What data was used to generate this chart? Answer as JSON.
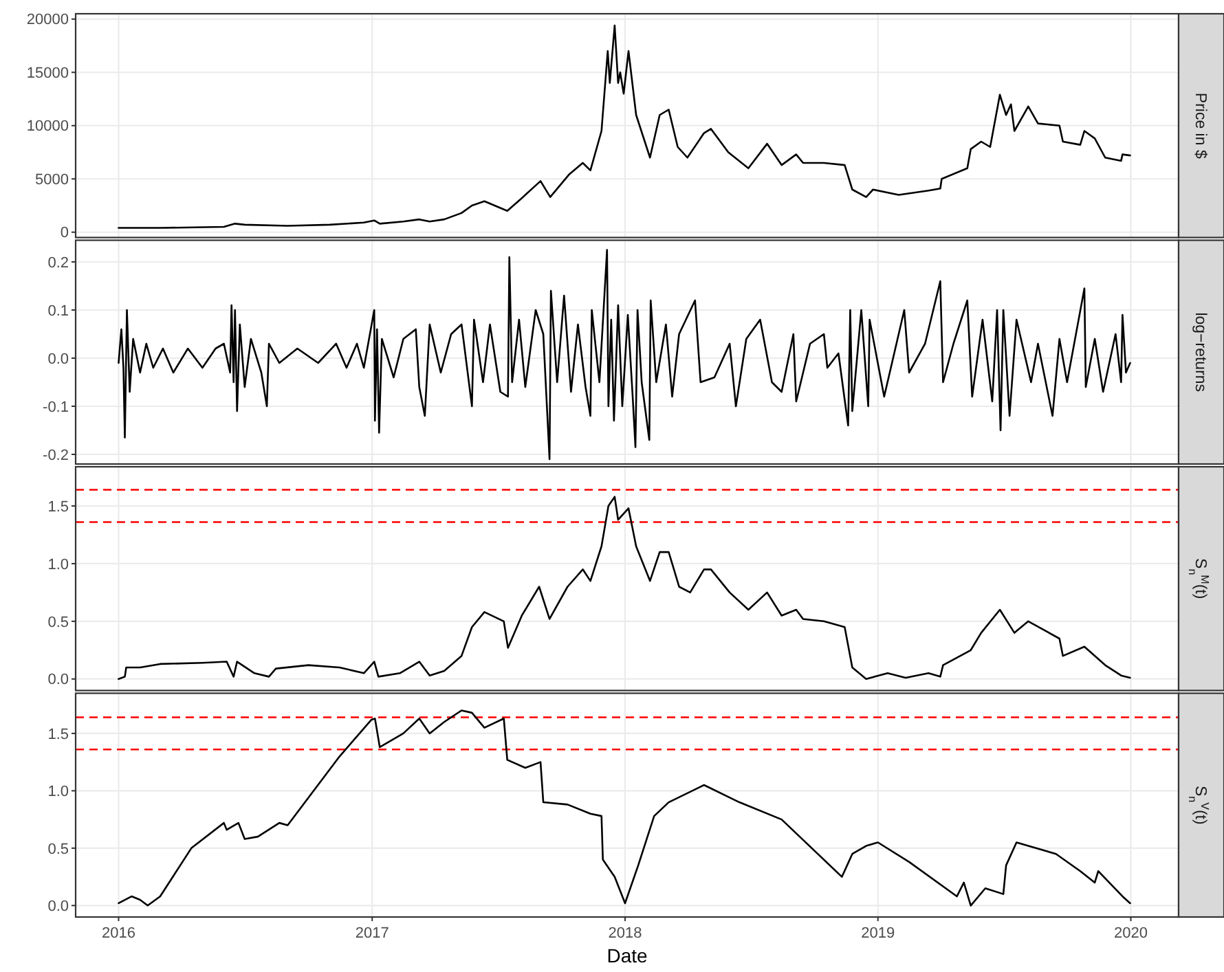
{
  "chart_data": [
    {
      "type": "line",
      "ylabel": "Price in $",
      "tick_labels": "y",
      "grid": true,
      "color": "#000000",
      "xlim": [
        "2015-10-31",
        "2020-03-10"
      ],
      "xticks": [
        "2016",
        "2017",
        "2018",
        "2019",
        "2020"
      ],
      "ylim": [
        -500,
        20500
      ],
      "yticks": [
        0,
        5000,
        10000,
        15000,
        20000
      ],
      "x": [
        "2016-01-01",
        "2016-03-01",
        "2016-06-01",
        "2016-06-17",
        "2016-07-01",
        "2016-09-01",
        "2016-11-01",
        "2016-12-20",
        "2017-01-04",
        "2017-01-12",
        "2017-02-15",
        "2017-03-10",
        "2017-03-25",
        "2017-04-15",
        "2017-05-10",
        "2017-05-25",
        "2017-06-12",
        "2017-07-15",
        "2017-08-05",
        "2017-09-01",
        "2017-09-15",
        "2017-10-12",
        "2017-11-01",
        "2017-11-12",
        "2017-11-28",
        "2017-12-07",
        "2017-12-10",
        "2017-12-17",
        "2017-12-22",
        "2017-12-25",
        "2017-12-30",
        "2018-01-06",
        "2018-01-17",
        "2018-02-06",
        "2018-02-20",
        "2018-03-05",
        "2018-03-18",
        "2018-04-01",
        "2018-04-25",
        "2018-05-05",
        "2018-05-30",
        "2018-06-28",
        "2018-07-25",
        "2018-08-15",
        "2018-09-05",
        "2018-09-15",
        "2018-10-15",
        "2018-11-14",
        "2018-11-25",
        "2018-12-15",
        "2018-12-25",
        "2019-01-31",
        "2019-03-15",
        "2019-04-01",
        "2019-04-03",
        "2019-05-10",
        "2019-05-15",
        "2019-05-30",
        "2019-06-12",
        "2019-06-26",
        "2019-07-05",
        "2019-07-12",
        "2019-07-17",
        "2019-08-06",
        "2019-08-20",
        "2019-09-20",
        "2019-09-25",
        "2019-10-20",
        "2019-10-26",
        "2019-11-10",
        "2019-11-25",
        "2019-12-18",
        "2019-12-20",
        "2019-12-31"
      ],
      "values": [
        400,
        400,
        500,
        800,
        700,
        600,
        700,
        900,
        1100,
        800,
        1000,
        1200,
        1000,
        1200,
        1800,
        2500,
        2900,
        2000,
        3200,
        4800,
        3300,
        5400,
        6500,
        5800,
        9500,
        17000,
        14000,
        19400,
        14000,
        15000,
        13000,
        17000,
        11000,
        7000,
        11000,
        11500,
        8000,
        7000,
        9300,
        9700,
        7500,
        6000,
        8300,
        6300,
        7300,
        6500,
        6500,
        6300,
        4000,
        3300,
        4000,
        3500,
        3900,
        4100,
        5000,
        6000,
        7800,
        8500,
        8000,
        12900,
        11000,
        12000,
        9500,
        11800,
        10200,
        10000,
        8500,
        8200,
        9500,
        8800,
        7000,
        6700,
        7300,
        7200
      ]
    },
    {
      "type": "line",
      "ylabel": "log−returns",
      "tick_labels": "y",
      "grid": true,
      "color": "#000000",
      "xlim": [
        "2015-10-31",
        "2020-03-10"
      ],
      "xticks": [
        "2016",
        "2017",
        "2018",
        "2019",
        "2020"
      ],
      "ylim": [
        -0.22,
        0.245
      ],
      "yticks": [
        {
          "value": -0.2,
          "label": "-0.2"
        },
        {
          "value": -0.1,
          "label": "-0.1"
        },
        {
          "value": 0,
          "label": "0.0"
        },
        0.1,
        0.2
      ],
      "x": [
        "2016-01-01",
        "2016-01-05",
        "2016-01-08",
        "2016-01-10",
        "2016-01-13",
        "2016-01-17",
        "2016-01-22",
        "2016-02-01",
        "2016-02-10",
        "2016-02-20",
        "2016-03-05",
        "2016-03-20",
        "2016-04-10",
        "2016-05-01",
        "2016-05-20",
        "2016-06-01",
        "2016-06-10",
        "2016-06-12",
        "2016-06-15",
        "2016-06-17",
        "2016-06-20",
        "2016-06-24",
        "2016-07-01",
        "2016-07-10",
        "2016-07-25",
        "2016-08-02",
        "2016-08-05",
        "2016-08-20",
        "2016-09-15",
        "2016-10-15",
        "2016-11-10",
        "2016-11-25",
        "2016-12-10",
        "2016-12-20",
        "2017-01-04",
        "2017-01-05",
        "2017-01-08",
        "2017-01-11",
        "2017-01-15",
        "2017-02-01",
        "2017-02-15",
        "2017-03-05",
        "2017-03-10",
        "2017-03-18",
        "2017-03-25",
        "2017-04-10",
        "2017-04-25",
        "2017-05-10",
        "2017-05-25",
        "2017-05-28",
        "2017-06-10",
        "2017-06-20",
        "2017-07-05",
        "2017-07-16",
        "2017-07-18",
        "2017-07-22",
        "2017-08-01",
        "2017-08-10",
        "2017-08-25",
        "2017-09-05",
        "2017-09-14",
        "2017-09-16",
        "2017-09-25",
        "2017-10-05",
        "2017-10-15",
        "2017-10-25",
        "2017-11-05",
        "2017-11-12",
        "2017-11-14",
        "2017-11-25",
        "2017-12-01",
        "2017-12-06",
        "2017-12-08",
        "2017-12-12",
        "2017-12-16",
        "2017-12-22",
        "2017-12-28",
        "2018-01-05",
        "2018-01-12",
        "2018-01-16",
        "2018-01-19",
        "2018-01-25",
        "2018-02-05",
        "2018-02-07",
        "2018-02-15",
        "2018-03-01",
        "2018-03-10",
        "2018-03-20",
        "2018-04-12",
        "2018-04-20",
        "2018-05-10",
        "2018-06-01",
        "2018-06-10",
        "2018-06-25",
        "2018-07-15",
        "2018-08-01",
        "2018-08-15",
        "2018-09-01",
        "2018-09-05",
        "2018-09-25",
        "2018-10-15",
        "2018-10-20",
        "2018-11-05",
        "2018-11-19",
        "2018-11-22",
        "2018-11-25",
        "2018-12-08",
        "2018-12-18",
        "2018-12-20",
        "2019-01-10",
        "2019-02-08",
        "2019-02-15",
        "2019-03-10",
        "2019-04-01",
        "2019-04-05",
        "2019-04-20",
        "2019-05-10",
        "2019-05-17",
        "2019-06-01",
        "2019-06-15",
        "2019-06-22",
        "2019-06-27",
        "2019-07-01",
        "2019-07-10",
        "2019-07-20",
        "2019-08-10",
        "2019-08-20",
        "2019-09-10",
        "2019-09-20",
        "2019-10-01",
        "2019-10-26",
        "2019-10-28",
        "2019-11-10",
        "2019-11-22",
        "2019-12-10",
        "2019-12-18",
        "2019-12-20",
        "2019-12-25",
        "2019-12-31"
      ],
      "values": [
        -0.01,
        0.06,
        -0.02,
        -0.165,
        0.1,
        -0.07,
        0.04,
        -0.03,
        0.03,
        -0.02,
        0.02,
        -0.03,
        0.02,
        -0.02,
        0.02,
        0.03,
        -0.03,
        0.11,
        -0.05,
        0.1,
        -0.11,
        0.07,
        -0.06,
        0.04,
        -0.03,
        -0.1,
        0.03,
        -0.01,
        0.02,
        -0.01,
        0.03,
        -0.02,
        0.03,
        -0.02,
        0.1,
        -0.13,
        0.06,
        -0.155,
        0.04,
        -0.04,
        0.04,
        0.06,
        -0.06,
        -0.12,
        0.07,
        -0.03,
        0.05,
        0.07,
        -0.1,
        0.08,
        -0.05,
        0.07,
        -0.07,
        -0.08,
        0.21,
        -0.05,
        0.08,
        -0.06,
        0.1,
        0.05,
        -0.21,
        0.14,
        -0.05,
        0.13,
        -0.07,
        0.07,
        -0.06,
        -0.12,
        0.1,
        -0.05,
        0.1,
        0.225,
        -0.1,
        0.08,
        -0.13,
        0.11,
        -0.1,
        0.09,
        -0.08,
        -0.185,
        0.1,
        -0.05,
        -0.17,
        0.12,
        -0.05,
        0.07,
        -0.08,
        0.05,
        0.12,
        -0.05,
        -0.04,
        0.03,
        -0.1,
        0.04,
        0.08,
        -0.05,
        -0.07,
        0.05,
        -0.09,
        0.03,
        0.05,
        -0.02,
        0.01,
        -0.14,
        0.1,
        -0.11,
        0.1,
        -0.1,
        0.08,
        -0.08,
        0.1,
        -0.03,
        0.03,
        0.16,
        -0.05,
        0.03,
        0.12,
        -0.08,
        0.08,
        -0.09,
        0.1,
        -0.15,
        0.1,
        -0.12,
        0.08,
        -0.05,
        0.03,
        -0.12,
        0.04,
        -0.05,
        0.145,
        -0.06,
        0.04,
        -0.07,
        0.05,
        -0.05,
        0.09,
        -0.03,
        -0.01
      ]
    },
    {
      "type": "line",
      "ylabel": "S$_{n}$$^{M}$(t)",
      "tick_labels": "y",
      "grid": true,
      "color": "#000000",
      "xlim": [
        "2015-10-31",
        "2020-03-10"
      ],
      "xticks": [
        "2016",
        "2017",
        "2018",
        "2019",
        "2020"
      ],
      "ylim": [
        -0.1,
        1.84
      ],
      "yticks": [
        {
          "value": 0,
          "label": "0.0"
        },
        {
          "value": 0.5,
          "label": "0.5"
        },
        {
          "value": 1,
          "label": "1.0"
        },
        {
          "value": 1.5,
          "label": "1.5"
        }
      ],
      "ref_lines": [
        {
          "axis": "y",
          "value": 1.64,
          "color": "#ff0000",
          "line_style": "dashed"
        },
        {
          "axis": "y",
          "value": 1.36,
          "color": "#ff0000",
          "line_style": "dashed"
        }
      ],
      "x": [
        "2016-01-01",
        "2016-01-10",
        "2016-01-12",
        "2016-02-01",
        "2016-03-01",
        "2016-05-01",
        "2016-06-05",
        "2016-06-15",
        "2016-06-20",
        "2016-07-15",
        "2016-08-05",
        "2016-08-15",
        "2016-10-01",
        "2016-11-15",
        "2016-12-20",
        "2017-01-04",
        "2017-01-10",
        "2017-02-10",
        "2017-03-10",
        "2017-03-25",
        "2017-04-15",
        "2017-05-10",
        "2017-05-25",
        "2017-06-12",
        "2017-07-10",
        "2017-07-16",
        "2017-08-05",
        "2017-08-30",
        "2017-09-14",
        "2017-10-10",
        "2017-11-01",
        "2017-11-12",
        "2017-11-28",
        "2017-12-08",
        "2017-12-17",
        "2017-12-22",
        "2018-01-06",
        "2018-01-17",
        "2018-02-06",
        "2018-02-20",
        "2018-03-05",
        "2018-03-20",
        "2018-04-05",
        "2018-04-25",
        "2018-05-05",
        "2018-06-01",
        "2018-06-28",
        "2018-07-25",
        "2018-08-15",
        "2018-09-05",
        "2018-09-15",
        "2018-10-15",
        "2018-11-14",
        "2018-11-25",
        "2018-12-15",
        "2019-01-15",
        "2019-02-10",
        "2019-03-15",
        "2019-04-01",
        "2019-04-05",
        "2019-05-15",
        "2019-05-30",
        "2019-06-26",
        "2019-07-17",
        "2019-08-06",
        "2019-09-20",
        "2019-09-25",
        "2019-10-26",
        "2019-11-25",
        "2019-12-18",
        "2019-12-31"
      ],
      "values": [
        0.0,
        0.02,
        0.1,
        0.1,
        0.13,
        0.14,
        0.15,
        0.02,
        0.15,
        0.05,
        0.02,
        0.09,
        0.12,
        0.1,
        0.05,
        0.15,
        0.02,
        0.05,
        0.15,
        0.03,
        0.07,
        0.2,
        0.45,
        0.58,
        0.5,
        0.27,
        0.55,
        0.8,
        0.52,
        0.8,
        0.95,
        0.85,
        1.15,
        1.5,
        1.58,
        1.38,
        1.48,
        1.15,
        0.85,
        1.1,
        1.1,
        0.8,
        0.75,
        0.95,
        0.95,
        0.75,
        0.6,
        0.75,
        0.55,
        0.6,
        0.52,
        0.5,
        0.45,
        0.1,
        0.0,
        0.05,
        0.01,
        0.05,
        0.02,
        0.12,
        0.25,
        0.4,
        0.6,
        0.4,
        0.5,
        0.35,
        0.2,
        0.28,
        0.12,
        0.03,
        0.01
      ]
    },
    {
      "type": "line",
      "ylabel": "S$_{n}$$^{V}$(t)",
      "xlabel": "Date",
      "grid": true,
      "color": "#000000",
      "xlim": [
        "2015-10-31",
        "2020-03-10"
      ],
      "xticks": [
        "2016",
        "2017",
        "2018",
        "2019",
        "2020"
      ],
      "ylim": [
        -0.1,
        1.85
      ],
      "yticks": [
        {
          "value": 0,
          "label": "0.0"
        },
        {
          "value": 0.5,
          "label": "0.5"
        },
        {
          "value": 1,
          "label": "1.0"
        },
        {
          "value": 1.5,
          "label": "1.5"
        }
      ],
      "ref_lines": [
        {
          "axis": "y",
          "value": 1.64,
          "color": "#ff0000",
          "line_style": "dashed"
        },
        {
          "axis": "y",
          "value": 1.36,
          "color": "#ff0000",
          "line_style": "dashed"
        }
      ],
      "x": [
        "2016-01-01",
        "2016-01-20",
        "2016-02-01",
        "2016-02-12",
        "2016-03-01",
        "2016-04-15",
        "2016-06-01",
        "2016-06-05",
        "2016-06-22",
        "2016-07-01",
        "2016-07-20",
        "2016-08-20",
        "2016-09-01",
        "2016-11-15",
        "2016-12-31",
        "2017-01-05",
        "2017-01-12",
        "2017-02-15",
        "2017-03-10",
        "2017-03-25",
        "2017-04-15",
        "2017-05-10",
        "2017-05-25",
        "2017-06-12",
        "2017-07-10",
        "2017-07-15",
        "2017-08-10",
        "2017-09-01",
        "2017-09-05",
        "2017-10-10",
        "2017-11-12",
        "2017-11-28",
        "2017-11-30",
        "2017-12-17",
        "2018-01-01",
        "2018-01-20",
        "2018-01-28",
        "2018-02-12",
        "2018-03-05",
        "2018-04-25",
        "2018-06-15",
        "2018-08-15",
        "2018-11-10",
        "2018-11-25",
        "2018-12-15",
        "2019-01-01",
        "2019-02-15",
        "2019-04-25",
        "2019-05-05",
        "2019-05-15",
        "2019-06-05",
        "2019-07-01",
        "2019-07-05",
        "2019-07-20",
        "2019-09-15",
        "2019-10-20",
        "2019-11-10",
        "2019-11-15",
        "2019-12-20",
        "2019-12-31"
      ],
      "values": [
        0.02,
        0.08,
        0.05,
        0.0,
        0.08,
        0.5,
        0.72,
        0.66,
        0.72,
        0.58,
        0.6,
        0.72,
        0.7,
        1.3,
        1.62,
        1.63,
        1.38,
        1.5,
        1.63,
        1.5,
        1.6,
        1.7,
        1.68,
        1.55,
        1.63,
        1.27,
        1.2,
        1.25,
        0.9,
        0.88,
        0.8,
        0.78,
        0.4,
        0.25,
        0.02,
        0.35,
        0.5,
        0.78,
        0.9,
        1.05,
        0.9,
        0.75,
        0.25,
        0.45,
        0.52,
        0.55,
        0.38,
        0.08,
        0.2,
        0.0,
        0.15,
        0.1,
        0.35,
        0.55,
        0.45,
        0.3,
        0.2,
        0.3,
        0.08,
        0.02
      ]
    }
  ]
}
